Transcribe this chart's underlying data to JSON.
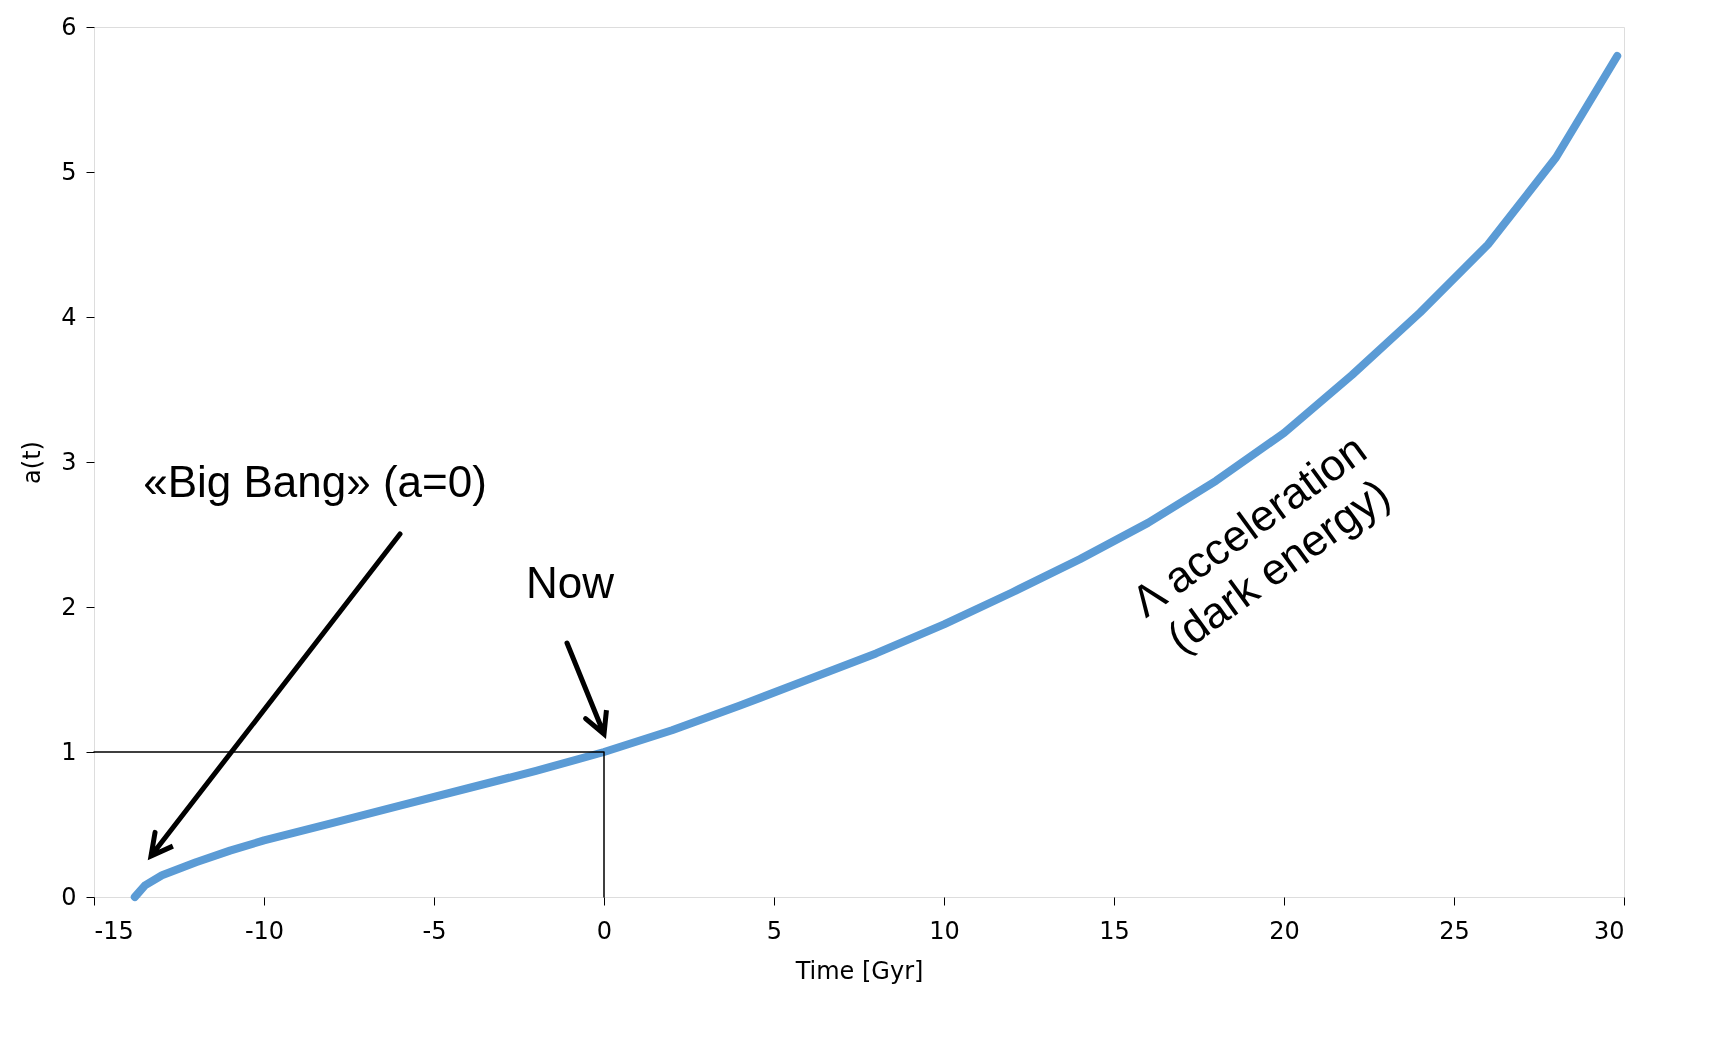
{
  "chart_data": {
    "type": "line",
    "xlabel": "Time [Gyr]",
    "ylabel": "a(t)",
    "xlim": [
      -15,
      30
    ],
    "ylim": [
      0,
      6
    ],
    "xticks": [
      -15,
      -10,
      -5,
      0,
      5,
      10,
      15,
      20,
      25,
      30
    ],
    "yticks": [
      0,
      1,
      2,
      3,
      4,
      5,
      6
    ],
    "grid": false,
    "marker": "none",
    "line_style": "solid",
    "series": [
      {
        "color": "#5b9bd5",
        "x": [
          -13.8,
          -13.5,
          -13,
          -12,
          -11,
          -10,
          -8,
          -6,
          -4,
          -2,
          0,
          2,
          4,
          6,
          8,
          10,
          12,
          14,
          16,
          18,
          20,
          22,
          24,
          26,
          28,
          29.8
        ],
        "values": [
          0,
          0.08,
          0.15,
          0.24,
          0.32,
          0.39,
          0.51,
          0.63,
          0.75,
          0.87,
          1.0,
          1.15,
          1.32,
          1.5,
          1.68,
          1.88,
          2.1,
          2.33,
          2.58,
          2.87,
          3.2,
          3.6,
          4.03,
          4.5,
          5.1,
          5.8
        ]
      },
      {
        "color": "#000000",
        "x": [
          -15,
          0,
          0
        ],
        "values": [
          1,
          1,
          0
        ]
      }
    ],
    "annotations": [
      "«Big Bang» (a=0)",
      "Now",
      "Λ acceleration\n(dark energy)"
    ]
  }
}
